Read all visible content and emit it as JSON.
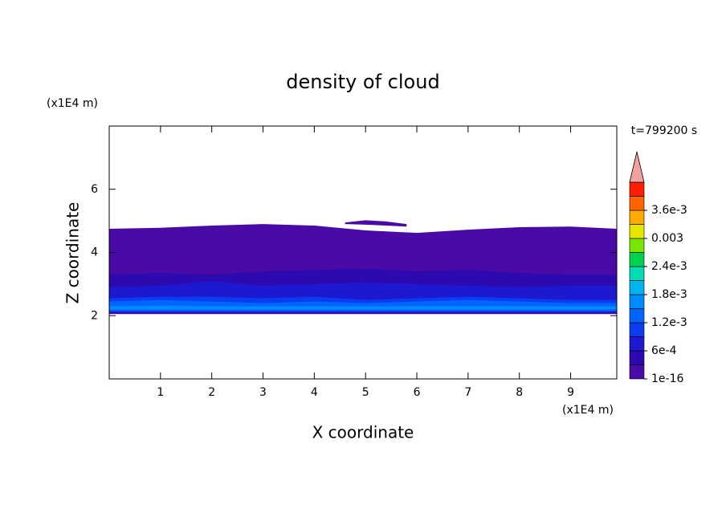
{
  "chart_data": {
    "type": "contour",
    "title": "density of cloud",
    "x_label": "X coordinate",
    "y_label": "Z coordinate",
    "x_unit": "(x1E4 m)",
    "y_unit": "(x1E4 m)",
    "time_label": "t=799200 s",
    "xlim": [
      0,
      9.9
    ],
    "ylim": [
      0,
      8
    ],
    "xticks": [
      1,
      2,
      3,
      4,
      5,
      6,
      7,
      8,
      9
    ],
    "yticks": [
      2,
      4,
      6
    ],
    "colorbar": {
      "levels": [
        1e-16,
        0.0003,
        0.0006,
        0.0009,
        0.0012,
        0.0015,
        0.0018,
        0.0021,
        0.0024,
        0.0027,
        0.003,
        0.0033,
        0.0036,
        0.0039
      ],
      "colors": [
        "#4a0aa6",
        "#2c0ab0",
        "#1e18d0",
        "#0a3cf0",
        "#0064ff",
        "#008cff",
        "#00b4f0",
        "#00dcb4",
        "#00d250",
        "#78e600",
        "#e6e600",
        "#ffaa00",
        "#ff6400",
        "#ff1e00"
      ],
      "extend_color": "#f4a0a0",
      "ticks": [
        {
          "value": 1e-16,
          "label": "1e-16"
        },
        {
          "value": 0.0006,
          "label": "6e-4"
        },
        {
          "value": 0.0012,
          "label": "1.2e-3"
        },
        {
          "value": 0.0018,
          "label": "1.8e-3"
        },
        {
          "value": 0.0024,
          "label": "2.4e-3"
        },
        0.003,
        {
          "value": 0.0036,
          "label": "3.6e-3"
        }
      ]
    },
    "regions": [
      {
        "level": 1e-16,
        "x": [
          0,
          1,
          2,
          3,
          4,
          5,
          6,
          7,
          8,
          9,
          9.9
        ],
        "z_top": [
          4.75,
          4.78,
          4.85,
          4.9,
          4.85,
          4.7,
          4.62,
          4.72,
          4.8,
          4.82,
          4.75
        ],
        "z_bottom": [
          2.05,
          2.05,
          2.05,
          2.05,
          2.05,
          2.05,
          2.05,
          2.05,
          2.05,
          2.05,
          2.05
        ]
      },
      {
        "level": 1e-16,
        "x": [
          4.6,
          5.0,
          5.4,
          5.8
        ],
        "z_top": [
          4.95,
          5.02,
          4.98,
          4.9
        ],
        "z_bottom": [
          4.9,
          4.88,
          4.85,
          4.82
        ]
      },
      {
        "level": 0.0003,
        "x": [
          0,
          1,
          2,
          3,
          4,
          5,
          6,
          7,
          8,
          9,
          9.9
        ],
        "z_top": [
          3.3,
          3.35,
          3.3,
          3.4,
          3.45,
          3.5,
          3.4,
          3.45,
          3.35,
          3.3,
          3.3
        ],
        "z_bottom": [
          2.08,
          2.08,
          2.08,
          2.08,
          2.08,
          2.08,
          2.08,
          2.08,
          2.08,
          2.08,
          2.08
        ]
      },
      {
        "level": 0.0006,
        "x": [
          0,
          1,
          2,
          3,
          4,
          5,
          6,
          7,
          8,
          9,
          9.9
        ],
        "z_top": [
          2.9,
          2.95,
          3.1,
          2.95,
          3.0,
          3.05,
          3.0,
          2.95,
          2.9,
          2.95,
          2.95
        ],
        "z_bottom": [
          2.1,
          2.1,
          2.1,
          2.1,
          2.1,
          2.1,
          2.1,
          2.1,
          2.1,
          2.1,
          2.1
        ]
      },
      {
        "level": 0.0009,
        "x": [
          0,
          1,
          2,
          3,
          4,
          5,
          6,
          7,
          8,
          9,
          9.9
        ],
        "z_top": [
          2.55,
          2.6,
          2.6,
          2.55,
          2.6,
          2.5,
          2.55,
          2.6,
          2.55,
          2.5,
          2.5
        ],
        "z_bottom": [
          2.12,
          2.12,
          2.12,
          2.12,
          2.12,
          2.12,
          2.12,
          2.12,
          2.12,
          2.12,
          2.12
        ]
      },
      {
        "level": 0.0012,
        "x": [
          0,
          1,
          2,
          3,
          4,
          5,
          6,
          7,
          8,
          9,
          9.9
        ],
        "z_top": [
          2.45,
          2.5,
          2.45,
          2.4,
          2.45,
          2.4,
          2.45,
          2.5,
          2.45,
          2.4,
          2.4
        ],
        "z_bottom": [
          2.15,
          2.15,
          2.15,
          2.15,
          2.15,
          2.15,
          2.15,
          2.15,
          2.15,
          2.15,
          2.15
        ]
      },
      {
        "level": 0.0015,
        "x": [
          0,
          1,
          2,
          3,
          4,
          5,
          6,
          7,
          8,
          9,
          9.9
        ],
        "z_top": [
          2.3,
          2.32,
          2.3,
          2.3,
          2.3,
          2.3,
          2.3,
          2.3,
          2.3,
          2.3,
          2.3
        ],
        "z_bottom": [
          2.2,
          2.2,
          2.2,
          2.2,
          2.2,
          2.2,
          2.2,
          2.2,
          2.2,
          2.2,
          2.2
        ]
      }
    ]
  }
}
